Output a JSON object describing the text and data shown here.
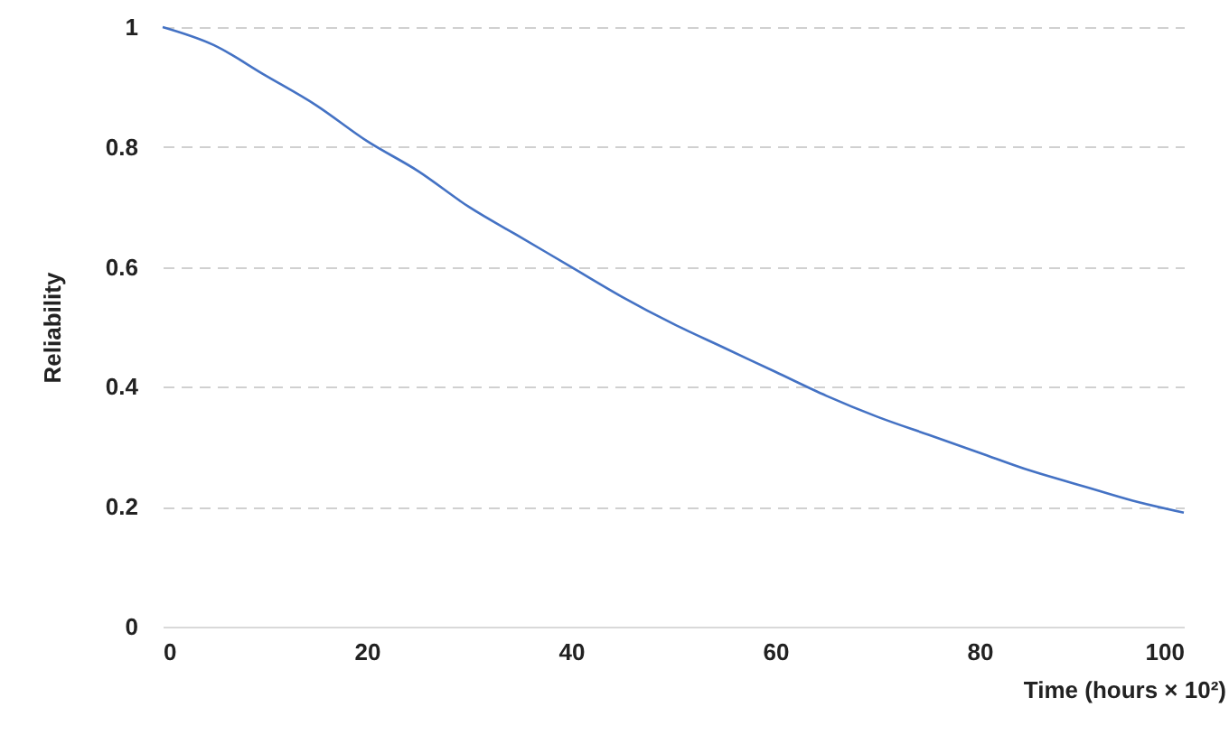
{
  "chart_data": {
    "type": "line",
    "xlabel": "Time (hours × 10²)",
    "ylabel": "Reliability",
    "x": [
      0,
      5,
      10,
      15,
      20,
      25,
      30,
      35,
      40,
      45,
      50,
      55,
      60,
      65,
      70,
      75,
      80,
      85,
      90,
      95,
      100
    ],
    "series": [
      {
        "color": "#4472c4",
        "values": [
          1,
          0.97,
          0.92,
          0.87,
          0.81,
          0.76,
          0.7,
          0.65,
          0.6,
          0.55,
          0.505,
          0.465,
          0.425,
          0.385,
          0.35,
          0.32,
          0.29,
          0.26,
          0.235,
          0.21,
          0.19
        ]
      }
    ],
    "xlim": [
      0,
      100
    ],
    "xticks": [
      0,
      20,
      40,
      60,
      80,
      100
    ],
    "ylim": [
      0,
      1
    ],
    "yticks": [
      0,
      0.2,
      0.4,
      0.6,
      0.8,
      1
    ],
    "grid": "y",
    "line_style": "solid"
  }
}
